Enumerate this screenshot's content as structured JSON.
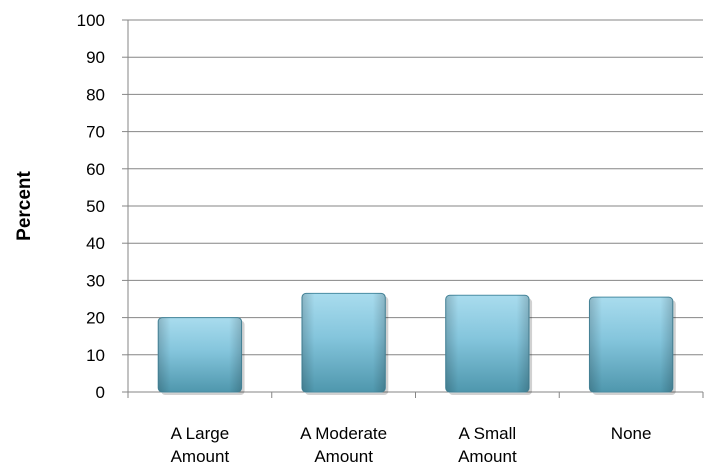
{
  "chart_data": {
    "type": "bar",
    "categories": [
      [
        "A Large",
        "Amount"
      ],
      [
        "A Moderate",
        "Amount"
      ],
      [
        "A Small",
        "Amount"
      ],
      [
        "None"
      ]
    ],
    "values": [
      20,
      26.5,
      26,
      25.5
    ],
    "title": "",
    "xlabel": "",
    "ylabel": "Percent",
    "ylim": [
      0,
      100
    ],
    "yticks": [
      "0",
      "10",
      "20",
      "30",
      "40",
      "50",
      "60",
      "70",
      "80",
      "90",
      "100"
    ],
    "grid": true,
    "legend": "none",
    "colors": {
      "bar_top": "#a9dcee",
      "bar_mid": "#84c5dc",
      "bar_bottom": "#4f97ad",
      "bar_edge": "#4a8da3",
      "grid": "#868686",
      "axis": "#868686"
    }
  }
}
